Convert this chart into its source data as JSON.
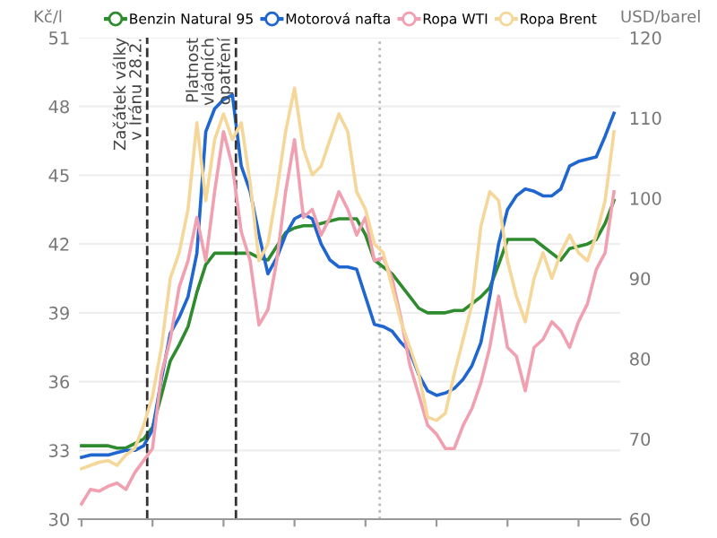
{
  "chart_data": {
    "type": "line",
    "categories": [
      null,
      null,
      null,
      null,
      null,
      null,
      null,
      null,
      null,
      null,
      null,
      null,
      null,
      null,
      null,
      null,
      null,
      null,
      null,
      null,
      null,
      null,
      null,
      null,
      null,
      null,
      null,
      null,
      null,
      null,
      null,
      null,
      null,
      null,
      null,
      null,
      null,
      null,
      null,
      null,
      null,
      null,
      null,
      null,
      null,
      null,
      null,
      null,
      null,
      null,
      null,
      null,
      null,
      null,
      null,
      null,
      null,
      null,
      null,
      null,
      null
    ],
    "ylabel": "Kč/l",
    "y2label": "USD/barel",
    "ylim": [
      30,
      51
    ],
    "yticks": [
      30,
      33,
      36,
      39,
      42,
      45,
      48,
      51
    ],
    "y2lim": [
      60,
      120
    ],
    "y2ticks": [
      60,
      70,
      80,
      90,
      100,
      110,
      120
    ],
    "grid": "y",
    "legend": "top",
    "marker": "none",
    "line_style": "solid",
    "tick_labels": "y",
    "annotations": [
      "Začátek války\nv Íránu 28.2.",
      "Platnost\nvládních\nopatření"
    ],
    "series": [
      {
        "name": "Benzin Natural 95",
        "color": "#2e8b2e",
        "values": [
          33.2,
          33.2,
          33.2,
          33.2,
          33.1,
          33.1,
          33.3,
          33.5,
          34.0,
          35.4,
          36.9,
          37.6,
          38.4,
          39.9,
          41.1,
          41.6,
          41.6,
          41.6,
          41.6,
          41.6,
          41.4,
          41.3,
          41.9,
          42.5,
          42.7,
          42.8,
          42.8,
          42.9,
          43.0,
          43.1,
          43.1,
          43.1,
          42.4,
          41.3,
          41.0,
          40.7,
          40.2,
          39.7,
          39.2,
          39.0,
          39.0,
          39.0,
          39.1,
          39.1,
          39.4,
          39.7,
          40.1,
          41.1,
          42.2,
          42.2,
          42.2,
          42.2,
          41.9,
          41.6,
          41.3,
          41.8,
          41.9,
          42.0,
          42.2,
          42.9,
          43.9
        ]
      },
      {
        "name": "Motorová nafta",
        "color": "#1f66d1",
        "values": [
          32.7,
          32.8,
          32.8,
          32.8,
          32.9,
          33.0,
          33.0,
          33.2,
          33.9,
          36.1,
          38.1,
          38.8,
          39.7,
          41.6,
          46.9,
          47.9,
          48.3,
          48.5,
          45.4,
          44.3,
          42.4,
          40.7,
          41.4,
          42.4,
          43.1,
          43.3,
          43.1,
          42.0,
          41.3,
          41.0,
          41.0,
          40.9,
          39.7,
          38.5,
          38.4,
          38.2,
          37.7,
          37.3,
          36.3,
          35.6,
          35.4,
          35.5,
          35.7,
          36.1,
          36.7,
          37.7,
          39.7,
          42.0,
          43.5,
          44.1,
          44.4,
          44.3,
          44.1,
          44.1,
          44.4,
          45.4,
          45.6,
          45.7,
          45.8,
          46.7,
          47.7
        ]
      },
      {
        "name": "Ropa WTI",
        "color": "#f0a0b0",
        "axis": "y2",
        "values": [
          61.9,
          63.7,
          63.5,
          64.1,
          64.5,
          63.7,
          65.8,
          67.3,
          68.8,
          78.1,
          82.4,
          88.9,
          92.2,
          97.6,
          92.2,
          100.8,
          108.3,
          104.0,
          95.8,
          92.2,
          84.2,
          86.1,
          92.2,
          100.8,
          107.3,
          97.6,
          98.6,
          95.4,
          97.6,
          100.8,
          98.6,
          95.4,
          97.6,
          92.2,
          92.6,
          90.0,
          85.0,
          79.2,
          75.5,
          71.7,
          70.6,
          68.8,
          68.8,
          71.7,
          73.8,
          77.0,
          81.4,
          87.8,
          81.4,
          80.3,
          76.0,
          81.4,
          82.4,
          84.6,
          83.5,
          81.4,
          84.6,
          86.8,
          91.1,
          93.2,
          100.8
        ]
      },
      {
        "name": "Ropa Brent",
        "color": "#f5d79a",
        "axis": "y2",
        "values": [
          66.3,
          66.7,
          67.1,
          67.3,
          66.7,
          68.0,
          68.8,
          71.7,
          75.3,
          81.4,
          90.0,
          93.2,
          98.6,
          109.4,
          99.7,
          107.3,
          110.5,
          107.3,
          109.4,
          101.9,
          92.2,
          94.3,
          100.8,
          108.3,
          113.7,
          106.2,
          102.9,
          104.0,
          107.3,
          110.5,
          108.3,
          100.8,
          98.6,
          94.3,
          93.2,
          88.9,
          84.6,
          81.4,
          78.1,
          72.7,
          72.3,
          73.2,
          78.1,
          82.4,
          86.8,
          96.5,
          100.8,
          99.7,
          92.2,
          87.8,
          84.6,
          90.0,
          93.2,
          90.0,
          93.2,
          95.4,
          93.2,
          92.2,
          95.4,
          99.7,
          108.3
        ]
      }
    ]
  }
}
